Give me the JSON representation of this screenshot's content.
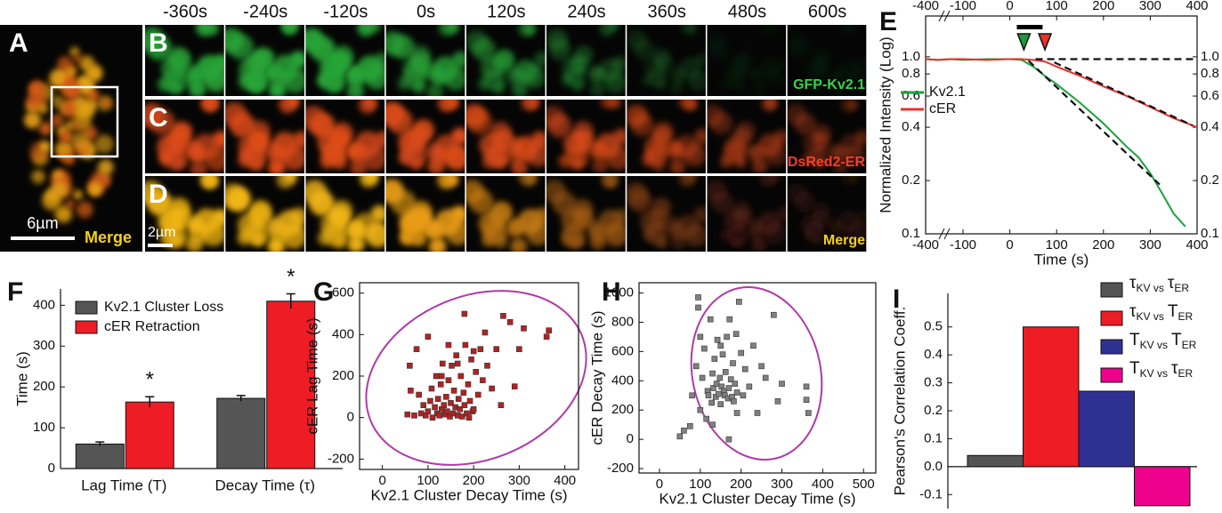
{
  "images": {
    "times": [
      "-360s",
      "-240s",
      "-120s",
      "0s",
      "120s",
      "240s",
      "360s",
      "480s",
      "600s"
    ],
    "panels": [
      {
        "label": "A",
        "scale_bar": "6µm",
        "caption": "Merge"
      },
      {
        "label": "B",
        "caption": "GFP-Kv2.1"
      },
      {
        "label": "C",
        "caption": "DsRed2-ER"
      },
      {
        "label": "D",
        "caption": "Merge",
        "scale_bar": "2µm"
      }
    ]
  },
  "chart_data": [
    {
      "type": "line",
      "panel_label": "E",
      "xlabel": "Time (s)",
      "ylabel": "Normalized Intensity (Log)",
      "x_break": true,
      "log_y": true,
      "legend_position": "upper left",
      "xlim": [
        -400,
        400
      ],
      "xticks": [
        -400,
        -100,
        0,
        100,
        200,
        300,
        400
      ],
      "x2ticks": [
        -400,
        -100,
        0,
        100,
        200,
        300,
        400
      ],
      "ylim": [
        0.1,
        1.7
      ],
      "yticks": [
        0.1,
        0.2,
        0.4,
        0.6,
        0.8,
        {
          "value": 1,
          "label": "1.0"
        }
      ],
      "y2lim": [
        0.1,
        1.7
      ],
      "y2ticks": [
        0.1,
        0.2,
        0.4,
        0.6,
        0.8,
        {
          "value": 1,
          "label": "1.0"
        }
      ],
      "series": [
        {
          "name": "Kv2.1",
          "color": "#1aa23a",
          "x": [
            -400,
            -300,
            -200,
            -100,
            -50,
            0,
            25,
            50,
            75,
            100,
            150,
            200,
            250,
            275,
            300,
            325,
            350,
            375
          ],
          "values": [
            0.97,
            0.96,
            0.97,
            0.96,
            0.97,
            0.97,
            0.96,
            0.88,
            0.78,
            0.7,
            0.55,
            0.42,
            0.31,
            0.27,
            0.22,
            0.17,
            0.13,
            0.11
          ]
        },
        {
          "name": "cER",
          "color": "#e8302a",
          "x": [
            -400,
            -300,
            -200,
            -100,
            -50,
            0,
            25,
            50,
            75,
            100,
            150,
            200,
            250,
            300,
            350,
            400
          ],
          "values": [
            0.97,
            0.96,
            0.97,
            0.97,
            0.96,
            0.97,
            0.97,
            0.96,
            0.94,
            0.88,
            0.78,
            0.68,
            0.6,
            0.52,
            0.45,
            0.4
          ]
        }
      ],
      "fits": [
        {
          "x": [
            55,
            400
          ],
          "values": [
            0.97,
            0.97
          ]
        },
        {
          "x": [
            40,
            320
          ],
          "values": [
            0.95,
            0.19
          ]
        },
        {
          "x": [
            95,
            390
          ],
          "values": [
            0.93,
            0.41
          ]
        }
      ],
      "stimulus": [
        15,
        70
      ],
      "markers": [
        {
          "x": 30,
          "color": "#1a9a3c"
        },
        {
          "x": 75,
          "color": "#e8332a"
        }
      ]
    },
    {
      "type": "bar",
      "panel_label": "F",
      "ylabel": "Time (s)",
      "legend_position": "upper left",
      "categories": [
        "Lag Time (T)",
        "Decay Time (τ)"
      ],
      "ylim": [
        0,
        440
      ],
      "yticks": [
        0,
        100,
        200,
        300,
        400
      ],
      "series": [
        {
          "name": "Kv2.1 Cluster Loss",
          "color": "#555555",
          "values": [
            60,
            172
          ],
          "errors": [
            5,
            7
          ]
        },
        {
          "name": "cER Retraction",
          "color": "#ee1c24",
          "values": [
            163,
            410
          ],
          "errors": [
            13,
            18
          ],
          "annotations": [
            "*",
            "*"
          ]
        }
      ]
    },
    {
      "type": "scatter",
      "panel_label": "G",
      "xlabel": "Kv2.1 Cluster Decay Time (s)",
      "ylabel": "cER Lag Time (s)",
      "xlim": [
        -50,
        430
      ],
      "xticks": [
        0,
        100,
        200,
        300,
        400
      ],
      "ylim": [
        -250,
        650
      ],
      "yticks": [
        -200,
        0,
        200,
        400,
        600
      ],
      "color": "#b22222",
      "x": [
        55,
        62,
        70,
        80,
        85,
        90,
        95,
        100,
        105,
        108,
        110,
        115,
        118,
        120,
        122,
        125,
        128,
        130,
        132,
        135,
        138,
        140,
        142,
        145,
        148,
        150,
        152,
        155,
        157,
        160,
        162,
        165,
        167,
        170,
        172,
        175,
        178,
        180,
        182,
        185,
        188,
        190,
        192,
        195,
        198,
        200,
        205,
        210,
        215,
        220,
        225,
        230,
        240,
        250,
        260,
        265,
        280,
        290,
        300,
        310,
        360,
        365,
        180,
        145,
        100,
        60,
        75,
        200,
        165,
        130
      ],
      "values": [
        15,
        130,
        10,
        110,
        20,
        60,
        10,
        30,
        80,
        140,
        0,
        50,
        200,
        20,
        90,
        10,
        160,
        40,
        260,
        60,
        15,
        100,
        30,
        180,
        5,
        70,
        250,
        20,
        130,
        50,
        300,
        10,
        90,
        40,
        200,
        5,
        120,
        60,
        350,
        20,
        160,
        0,
        80,
        280,
        30,
        40,
        220,
        110,
        330,
        180,
        410,
        250,
        140,
        330,
        60,
        490,
        460,
        150,
        330,
        430,
        390,
        420,
        500,
        350,
        390,
        250,
        330,
        320,
        260,
        200
      ]
    },
    {
      "type": "scatter",
      "panel_label": "H",
      "xlabel": "Kv2.1 Cluster Decay Time (s)",
      "ylabel": "cER Decay Time (s)",
      "xlim": [
        -50,
        530
      ],
      "xticks": [
        0,
        100,
        200,
        300,
        400,
        500
      ],
      "ylim": [
        -230,
        1070
      ],
      "yticks": [
        -200,
        0,
        200,
        400,
        600,
        800,
        1000
      ],
      "color": "#808080",
      "x": [
        50,
        60,
        75,
        80,
        90,
        95,
        100,
        100,
        105,
        110,
        115,
        118,
        120,
        125,
        128,
        130,
        132,
        135,
        138,
        140,
        142,
        145,
        148,
        150,
        152,
        155,
        158,
        160,
        162,
        165,
        168,
        170,
        172,
        175,
        178,
        180,
        182,
        185,
        188,
        190,
        195,
        200,
        205,
        210,
        220,
        230,
        240,
        250,
        260,
        280,
        290,
        300,
        360,
        365,
        360,
        95,
        150,
        130,
        170,
        190
      ],
      "values": [
        20,
        60,
        90,
        300,
        500,
        900,
        200,
        700,
        420,
        620,
        140,
        330,
        300,
        820,
        250,
        450,
        350,
        550,
        290,
        380,
        680,
        310,
        420,
        240,
        360,
        580,
        330,
        300,
        460,
        700,
        280,
        350,
        820,
        410,
        290,
        520,
        260,
        380,
        720,
        320,
        940,
        590,
        300,
        480,
        360,
        640,
        180,
        500,
        420,
        850,
        260,
        380,
        360,
        180,
        270,
        970,
        640,
        100,
        0,
        180
      ]
    },
    {
      "type": "bar",
      "panel_label": "I",
      "ylabel": "Pearson's Correlation Coeff.",
      "legend_position": "upper right",
      "categories": [
        null,
        null,
        null,
        null
      ],
      "values": [
        0.04,
        0.5,
        0.27,
        -0.14
      ],
      "colors": [
        "#555555",
        "#ee1c24",
        "#2e3192",
        "#ec008c"
      ],
      "ylim": [
        -0.15,
        0.62
      ],
      "yticks": [
        -0.1,
        {
          "value": 0,
          "label": "0.0"
        },
        0.1,
        0.2,
        0.3,
        0.4,
        0.5
      ],
      "legend": [
        [
          "τ",
          "KV vs",
          "τ",
          "ER"
        ],
        [
          "τ",
          "KV vs",
          "T",
          "ER"
        ],
        [
          "T",
          "KV vs",
          "T",
          "ER"
        ],
        [
          "T",
          "KV vs",
          "τ",
          "ER"
        ]
      ]
    }
  ]
}
